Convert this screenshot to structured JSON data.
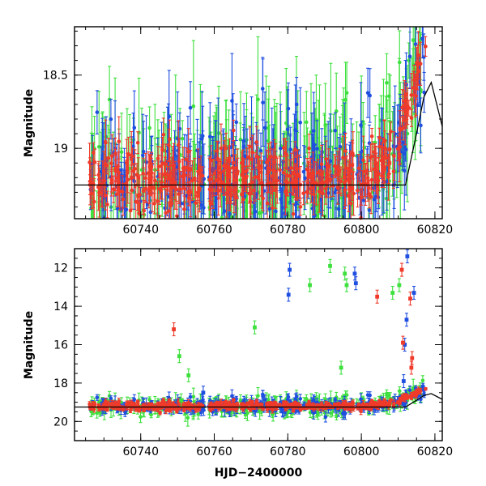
{
  "colors": {
    "blue": "#1f4fe0",
    "green": "#3ee03e",
    "red": "#f03a2a",
    "model": "#000000"
  },
  "chart_data": [
    {
      "type": "scatter",
      "panel": "top",
      "xlabel": "",
      "ylabel": "Magnitude",
      "xlim": [
        60722,
        60822
      ],
      "ylim": [
        19.48,
        18.17
      ],
      "y_inverted": true,
      "x_major_ticks": [
        60740,
        60760,
        60780,
        60800,
        60820
      ],
      "x_minor_step": 5,
      "y_major_ticks": [
        18.5,
        19
      ],
      "y_minor_step": 0.1,
      "x_tick_labels": [
        "60740",
        "60760",
        "60780",
        "60800",
        "60820"
      ],
      "y_tick_labels": [
        "18.5",
        "19"
      ],
      "series": [
        {
          "color_key": "blue"
        },
        {
          "color_key": "green"
        },
        {
          "color_key": "red"
        }
      ],
      "baseline_mag": 19.25,
      "model_curve": {
        "x": [
          60722,
          60812,
          60815,
          60817,
          60819,
          60822
        ],
        "y": [
          19.25,
          19.25,
          18.9,
          18.65,
          18.55,
          18.85
        ]
      }
    },
    {
      "type": "scatter",
      "panel": "bottom",
      "xlabel": "HJD−2400000",
      "ylabel": "Magnitude",
      "xlim": [
        60722,
        60822
      ],
      "ylim": [
        21.0,
        11.0
      ],
      "y_inverted": true,
      "x_major_ticks": [
        60740,
        60760,
        60780,
        60800,
        60820
      ],
      "x_minor_step": 5,
      "y_major_ticks": [
        12,
        14,
        16,
        18,
        20
      ],
      "y_minor_step": 0.5,
      "x_tick_labels": [
        "60740",
        "60760",
        "60780",
        "60800",
        "60820"
      ],
      "y_tick_labels": [
        "12",
        "14",
        "16",
        "18",
        "20"
      ],
      "series": [
        {
          "color_key": "blue"
        },
        {
          "color_key": "green"
        },
        {
          "color_key": "red"
        }
      ],
      "baseline_mag": 19.25,
      "model_curve": {
        "x": [
          60722,
          60812,
          60815,
          60817,
          60819,
          60822
        ],
        "y": [
          19.25,
          19.25,
          18.9,
          18.65,
          18.55,
          18.85
        ]
      },
      "outliers": [
        {
          "series": "blue",
          "x": 60780.5,
          "y": 12.1
        },
        {
          "series": "blue",
          "x": 60780.2,
          "y": 13.4
        },
        {
          "series": "blue",
          "x": 60798.2,
          "y": 12.3
        },
        {
          "series": "blue",
          "x": 60798.5,
          "y": 12.8
        },
        {
          "series": "blue",
          "x": 60812.5,
          "y": 11.4
        },
        {
          "series": "blue",
          "x": 60814.3,
          "y": 13.3
        },
        {
          "series": "blue",
          "x": 60812.3,
          "y": 14.7
        },
        {
          "series": "blue",
          "x": 60811.8,
          "y": 16.0
        },
        {
          "series": "blue",
          "x": 60757.0,
          "y": 18.5
        },
        {
          "series": "blue",
          "x": 60811.5,
          "y": 17.9
        },
        {
          "series": "green",
          "x": 60791.5,
          "y": 11.9
        },
        {
          "series": "green",
          "x": 60795.5,
          "y": 12.3
        },
        {
          "series": "green",
          "x": 60786.0,
          "y": 12.9
        },
        {
          "series": "green",
          "x": 60796.0,
          "y": 12.9
        },
        {
          "series": "green",
          "x": 60808.5,
          "y": 13.3
        },
        {
          "series": "green",
          "x": 60810.3,
          "y": 12.9
        },
        {
          "series": "green",
          "x": 60771.0,
          "y": 15.1
        },
        {
          "series": "green",
          "x": 60750.5,
          "y": 16.6
        },
        {
          "series": "green",
          "x": 60753.0,
          "y": 17.6
        },
        {
          "series": "green",
          "x": 60794.5,
          "y": 17.2
        },
        {
          "series": "green",
          "x": 60751.0,
          "y": 18.9
        },
        {
          "series": "red",
          "x": 60749.0,
          "y": 15.2
        },
        {
          "series": "red",
          "x": 60804.3,
          "y": 13.5
        },
        {
          "series": "red",
          "x": 60811.0,
          "y": 12.1
        },
        {
          "series": "red",
          "x": 60813.3,
          "y": 13.6
        },
        {
          "series": "red",
          "x": 60811.3,
          "y": 15.9
        },
        {
          "series": "red",
          "x": 60813.8,
          "y": 16.7
        },
        {
          "series": "red",
          "x": 60813.6,
          "y": 17.2
        }
      ]
    }
  ]
}
